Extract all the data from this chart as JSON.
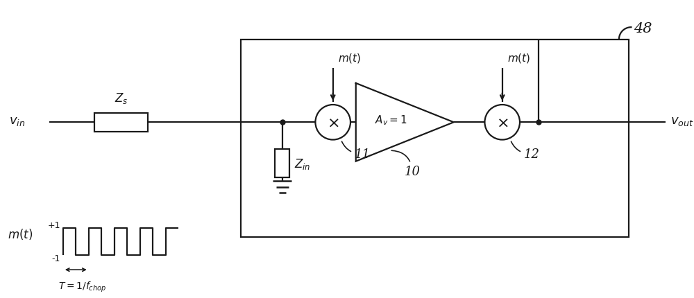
{
  "bg_color": "#ffffff",
  "line_color": "#1a1a1a",
  "fig_width": 10.0,
  "fig_height": 4.31,
  "label_48": "48",
  "label_11": "11",
  "label_12": "12",
  "label_10": "10",
  "label_vin": "$v_{in}$",
  "label_vout": "$v_{out}$",
  "label_Zs": "$Z_s$",
  "label_Zin": "$Z_{in}$",
  "label_mt": "$m(t)$",
  "label_Av": "$A_v = 1$",
  "label_mt_legend": "$m(t)$",
  "label_plus1": "+1",
  "label_minus1": "-1",
  "label_T": "$T=1/f_{chop}$"
}
